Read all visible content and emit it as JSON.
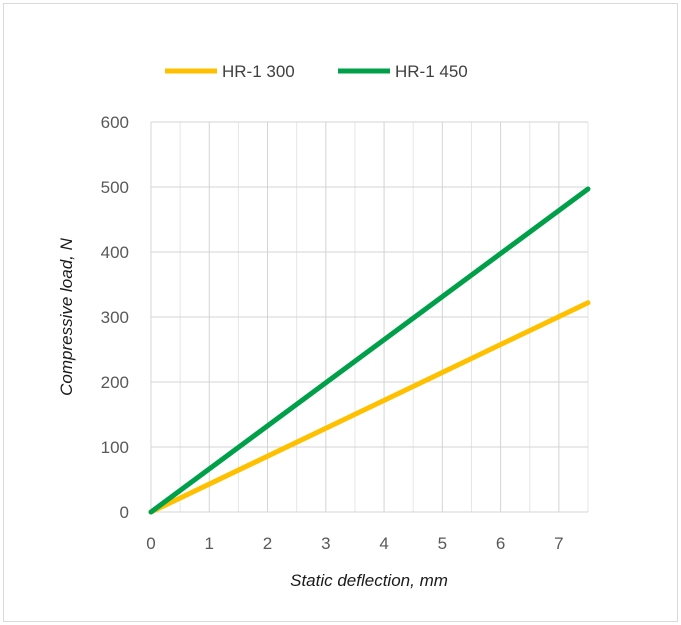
{
  "chart_data": {
    "type": "line",
    "xlabel": "Static deflection, mm",
    "ylabel": "Compressive load, N",
    "xlim": [
      0,
      7.5
    ],
    "ylim": [
      0,
      600
    ],
    "x_ticks": [
      0,
      1,
      2,
      3,
      4,
      5,
      6,
      7
    ],
    "y_ticks": [
      0,
      100,
      200,
      300,
      400,
      500,
      600
    ],
    "x_minor_step": 0.5,
    "grid": true,
    "legend_position": "top",
    "series": [
      {
        "name": "HR-1 300",
        "color": "#FFC000",
        "x": [
          0,
          7.5
        ],
        "y": [
          0,
          322
        ]
      },
      {
        "name": "HR-1 450",
        "color": "#00A04A",
        "x": [
          0,
          7.5
        ],
        "y": [
          0,
          497
        ]
      }
    ]
  }
}
